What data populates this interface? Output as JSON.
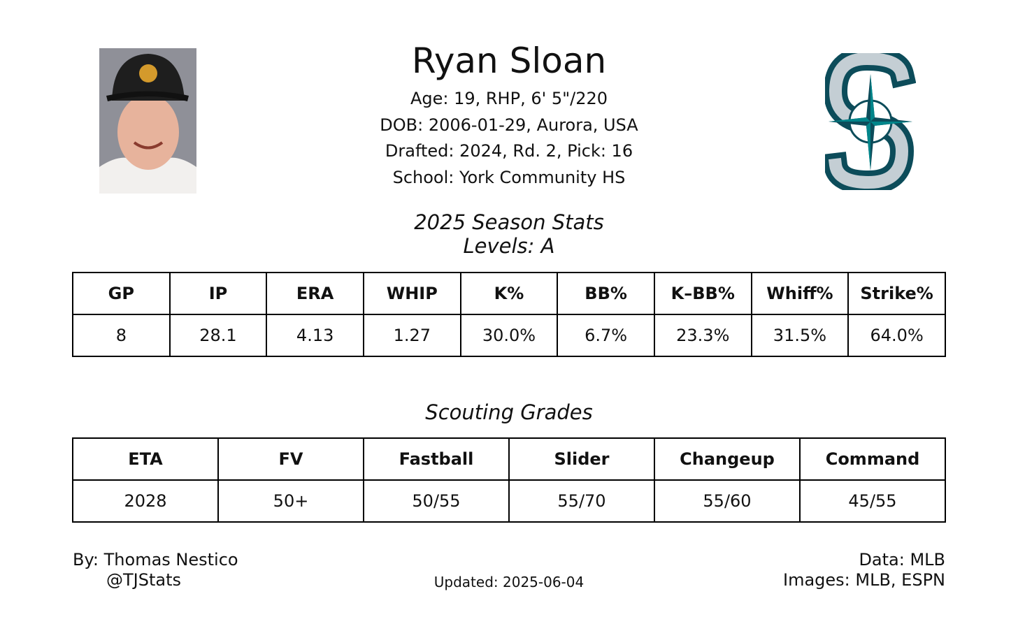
{
  "header": {
    "name": "Ryan Sloan",
    "lines": [
      "Age: 19, RHP, 6' 5\"/220",
      "DOB: 2006-01-29, Aurora, USA",
      "Drafted: 2024, Rd. 2, Pick: 16",
      "School: York Community HS"
    ]
  },
  "stats": {
    "title": "2025 Season Stats",
    "subtitle": "Levels: A",
    "headers": [
      "GP",
      "IP",
      "ERA",
      "WHIP",
      "K%",
      "BB%",
      "K–BB%",
      "Whiff%",
      "Strike%"
    ],
    "rows": [
      [
        "8",
        "28.1",
        "4.13",
        "1.27",
        "30.0%",
        "6.7%",
        "23.3%",
        "31.5%",
        "64.0%"
      ]
    ]
  },
  "grades": {
    "title": "Scouting Grades",
    "headers": [
      "ETA",
      "FV",
      "Fastball",
      "Slider",
      "Changeup",
      "Command"
    ],
    "rows": [
      [
        "2028",
        "50+",
        "50/55",
        "55/70",
        "55/60",
        "45/55"
      ]
    ]
  },
  "footer": {
    "author": "By: Thomas Nestico",
    "handle": "@TJStats",
    "updated": "Updated: 2025-06-04",
    "data": "Data: MLB",
    "images": "Images: MLB, ESPN"
  }
}
